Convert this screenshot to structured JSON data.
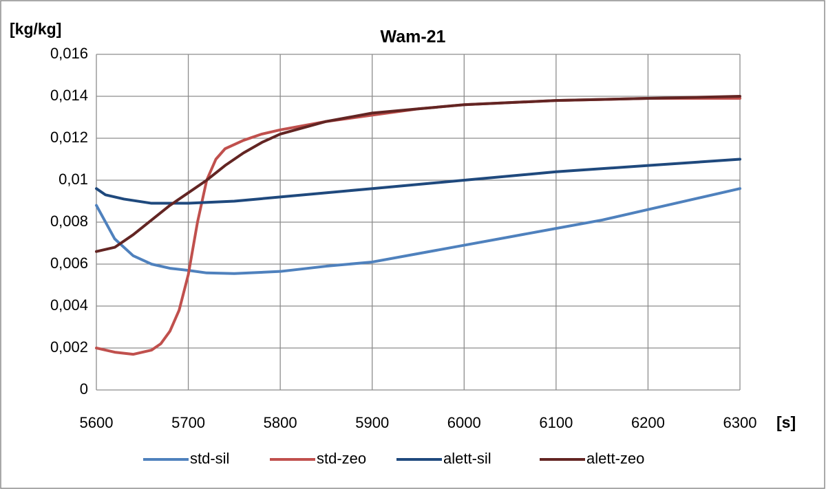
{
  "chart_data": {
    "type": "line",
    "title": "Wam-21",
    "y_label": "[kg/kg]",
    "x_label": "[s]",
    "xlim": [
      5600,
      6300
    ],
    "xticks": [
      5600,
      5700,
      5800,
      5900,
      6000,
      6100,
      6200,
      6300
    ],
    "ylim": [
      0,
      0.016
    ],
    "yticks": [
      0,
      {
        "value": 0.002,
        "label": "0,002"
      },
      {
        "value": 0.004,
        "label": "0,004"
      },
      {
        "value": 0.006,
        "label": "0,006"
      },
      {
        "value": 0.008,
        "label": "0,008"
      },
      {
        "value": 0.01,
        "label": "0,01"
      },
      {
        "value": 0.012,
        "label": "0,012"
      },
      {
        "value": 0.014,
        "label": "0,014"
      },
      {
        "value": 0.016,
        "label": "0,016"
      }
    ],
    "grid": true,
    "legend": "bottom",
    "series": [
      {
        "name": "std-sil",
        "color": "#4f81bd",
        "x": [
          5600,
          5620,
          5640,
          5660,
          5680,
          5700,
          5720,
          5750,
          5800,
          5850,
          5900,
          5950,
          6000,
          6050,
          6100,
          6150,
          6200,
          6250,
          6300
        ],
        "values": [
          0.0088,
          0.0072,
          0.0064,
          0.006,
          0.0058,
          0.0057,
          0.00558,
          0.00555,
          0.00565,
          0.0059,
          0.0061,
          0.0065,
          0.0069,
          0.0073,
          0.0077,
          0.0081,
          0.0086,
          0.0091,
          0.0096
        ]
      },
      {
        "name": "std-zeo",
        "color": "#c0504d",
        "x": [
          5600,
          5620,
          5640,
          5660,
          5670,
          5680,
          5690,
          5700,
          5710,
          5720,
          5730,
          5740,
          5760,
          5780,
          5800,
          5850,
          5900,
          5950,
          6000,
          6100,
          6200,
          6300
        ],
        "values": [
          0.002,
          0.0018,
          0.0017,
          0.0019,
          0.0022,
          0.0028,
          0.0038,
          0.0055,
          0.008,
          0.01,
          0.011,
          0.0115,
          0.0119,
          0.0122,
          0.0124,
          0.0128,
          0.0131,
          0.0134,
          0.0136,
          0.0138,
          0.0139,
          0.0139
        ]
      },
      {
        "name": "alett-sil",
        "color": "#1f497d",
        "x": [
          5600,
          5610,
          5630,
          5660,
          5700,
          5750,
          5800,
          5900,
          6000,
          6100,
          6200,
          6300
        ],
        "values": [
          0.0096,
          0.0093,
          0.0091,
          0.0089,
          0.0089,
          0.009,
          0.0092,
          0.0096,
          0.01,
          0.0104,
          0.0107,
          0.011
        ]
      },
      {
        "name": "alett-zeo",
        "color": "#632523",
        "x": [
          5600,
          5620,
          5640,
          5660,
          5680,
          5700,
          5720,
          5740,
          5760,
          5780,
          5800,
          5850,
          5900,
          5950,
          6000,
          6100,
          6200,
          6300
        ],
        "values": [
          0.0066,
          0.0068,
          0.0074,
          0.0081,
          0.0088,
          0.0094,
          0.01,
          0.0107,
          0.0113,
          0.0118,
          0.0122,
          0.0128,
          0.0132,
          0.0134,
          0.0136,
          0.0138,
          0.0139,
          0.014
        ]
      }
    ]
  }
}
